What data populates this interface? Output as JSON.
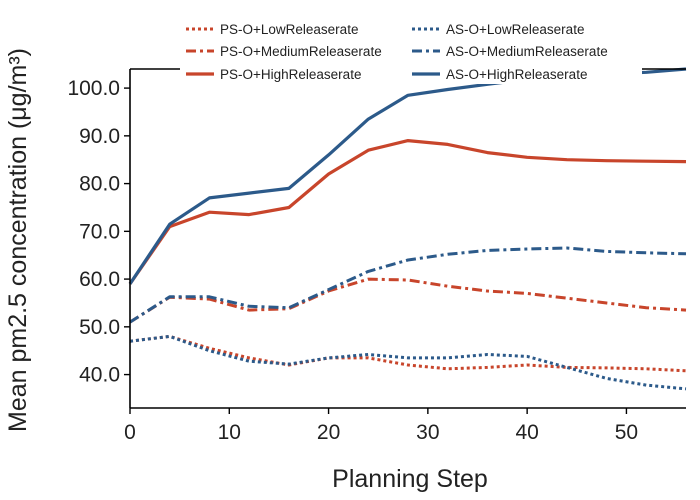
{
  "colors": {
    "ps": "#C8452B",
    "as": "#2C5A8A",
    "axis": "#000000"
  },
  "chart_data": {
    "type": "line",
    "title": "",
    "xlabel": "Planning Step",
    "ylabel": "Mean pm2.5 concentration (μg/m³)",
    "xlim": [
      0,
      56
    ],
    "ylim": [
      33,
      104
    ],
    "xticks": [
      0,
      10,
      20,
      30,
      40,
      50
    ],
    "xtick_labels": [
      "0",
      "10",
      "20",
      "30",
      "40",
      "50"
    ],
    "yticks": [
      40,
      50,
      60,
      70,
      80,
      90,
      100
    ],
    "ytick_labels": [
      "40.0",
      "50.0",
      "60.0",
      "70.0",
      "80.0",
      "90.0",
      "100.0"
    ],
    "x": [
      0,
      4,
      8,
      12,
      16,
      20,
      24,
      28,
      32,
      36,
      40,
      44,
      48,
      52,
      56
    ],
    "legend_position": "top",
    "series": [
      {
        "name": "PS-O+LowReleaserate",
        "family": "ps",
        "style": "dotted",
        "values": [
          47,
          48,
          45.5,
          43.5,
          42,
          43.5,
          43.5,
          42,
          41.2,
          41.5,
          42,
          41.5,
          41.4,
          41.2,
          40.8
        ]
      },
      {
        "name": "AS-O+LowReleaserate",
        "family": "as",
        "style": "dotted",
        "values": [
          47,
          48,
          45,
          42.8,
          42.2,
          43.5,
          44.2,
          43.5,
          43.5,
          44.2,
          43.8,
          41.5,
          39.2,
          37.8,
          37
        ]
      },
      {
        "name": "PS-O+MediumReleaserate",
        "family": "ps",
        "style": "dashdot",
        "values": [
          51,
          56.2,
          55.8,
          53.5,
          53.8,
          57.5,
          60,
          59.8,
          58.5,
          57.5,
          57,
          56,
          55,
          54,
          53.5
        ]
      },
      {
        "name": "AS-O+MediumReleaserate",
        "family": "as",
        "style": "dashdot",
        "values": [
          51,
          56.3,
          56.3,
          54.3,
          54,
          57.8,
          61.6,
          64,
          65.2,
          66,
          66.3,
          66.5,
          65.8,
          65.5,
          65.3
        ]
      },
      {
        "name": "PS-O+HighReleaserate",
        "family": "ps",
        "style": "solid",
        "values": [
          59,
          71,
          74,
          73.5,
          75,
          82,
          87,
          89,
          88.2,
          86.5,
          85.5,
          85,
          84.8,
          84.7,
          84.6
        ]
      },
      {
        "name": "AS-O+HighReleaserate",
        "family": "as",
        "style": "solid",
        "values": [
          59,
          71.5,
          77,
          78,
          79,
          86,
          93.5,
          98.5,
          99.7,
          100.8,
          101.8,
          102.5,
          103,
          103.3,
          104
        ]
      }
    ]
  }
}
